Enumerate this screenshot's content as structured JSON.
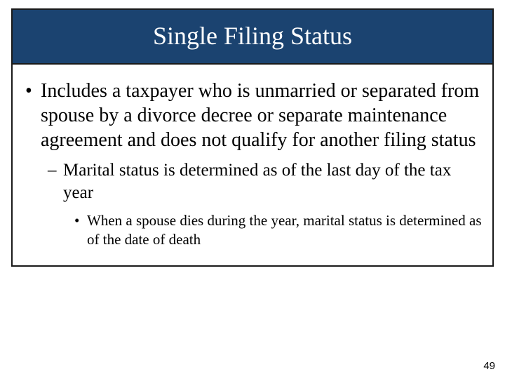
{
  "slide": {
    "title": "Single Filing Status",
    "bullets": {
      "lvl1": "Includes a taxpayer who is unmarried or separated from spouse by a divorce decree or separate maintenance agreement and does not qualify for another filing status",
      "lvl2": "Marital status is determined as of the last day of the tax year",
      "lvl3": "When a spouse dies during the year, marital status is determined as of the date of death"
    },
    "page_number": "49"
  },
  "style": {
    "title_bg": "#1b4370",
    "title_color": "#ffffff",
    "border_color": "#1a1a1a",
    "body_color": "#000000",
    "title_fontsize": 36,
    "lvl1_fontsize": 28,
    "lvl2_fontsize": 25,
    "lvl3_fontsize": 21,
    "page_fontsize": 15
  }
}
